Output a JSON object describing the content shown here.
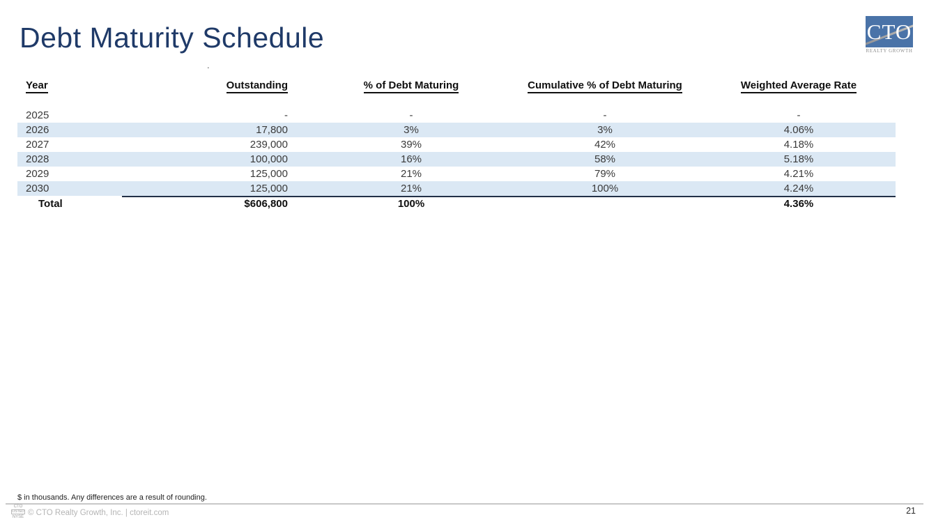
{
  "slide": {
    "title": "Debt Maturity Schedule",
    "stray_mark": "."
  },
  "logo": {
    "text": "CTO",
    "subtext": "REALTY GROWTH"
  },
  "colors": {
    "stripe": "#dbe8f4",
    "title_navy": "#1f3a68",
    "logo_blue": "#4a73a8",
    "rule_dark": "#223047",
    "footer_gray": "#b5b5b5"
  },
  "table": {
    "headers": {
      "year": "Year",
      "outstanding": "Outstanding",
      "pct_maturing": "% of Debt Maturing",
      "cumulative": "Cumulative % of Debt Maturing",
      "weighted_rate": "Weighted Average Rate"
    },
    "rows": [
      {
        "year": "2025",
        "outstanding": "-",
        "pct": "-",
        "cumulative": "-",
        "rate": "-",
        "highlight": false,
        "underline": false
      },
      {
        "year": "2026",
        "outstanding": "17,800",
        "pct": "3%",
        "cumulative": "3%",
        "rate": "4.06%",
        "highlight": true,
        "underline": false
      },
      {
        "year": "2027",
        "outstanding": "239,000",
        "pct": "39%",
        "cumulative": "42%",
        "rate": "4.18%",
        "highlight": false,
        "underline": false
      },
      {
        "year": "2028",
        "outstanding": "100,000",
        "pct": "16%",
        "cumulative": "58%",
        "rate": "5.18%",
        "highlight": true,
        "underline": false
      },
      {
        "year": "2029",
        "outstanding": "125,000",
        "pct": "21%",
        "cumulative": "79%",
        "rate": "4.21%",
        "highlight": false,
        "underline": false
      },
      {
        "year": "2030",
        "outstanding": "125,000",
        "pct": "21%",
        "cumulative": "100%",
        "rate": "4.24%",
        "highlight": true,
        "underline": true
      }
    ],
    "total": {
      "label": "Total",
      "outstanding": "$606,800",
      "pct": "100%",
      "cumulative": "",
      "rate": "4.36%"
    }
  },
  "footer": {
    "footnote": "$ in thousands. Any differences are a result of rounding.",
    "badge": {
      "line1": "CTO",
      "line2": "LISTED",
      "line3": "NYSE"
    },
    "copyright": "© CTO Realty Growth, Inc. | ctoreit.com",
    "page_number": "21"
  }
}
